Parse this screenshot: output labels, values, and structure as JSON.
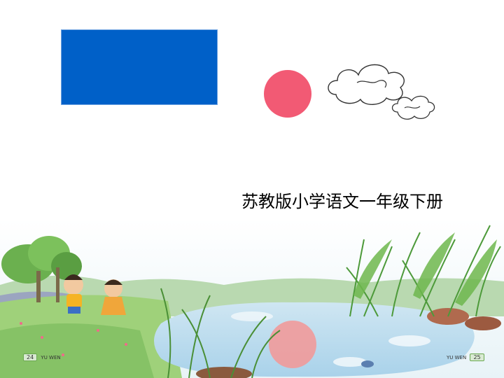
{
  "shapes": {
    "rectangle_color": "#0060c8",
    "circle_color": "#f25a74",
    "cloud_icon": "cloud-outline"
  },
  "title": "苏教版小学语文一年级下册",
  "illustration": {
    "left_page_number": "24",
    "left_label": "YU WEN",
    "right_label": "YU WEN",
    "right_page_number": "25"
  }
}
